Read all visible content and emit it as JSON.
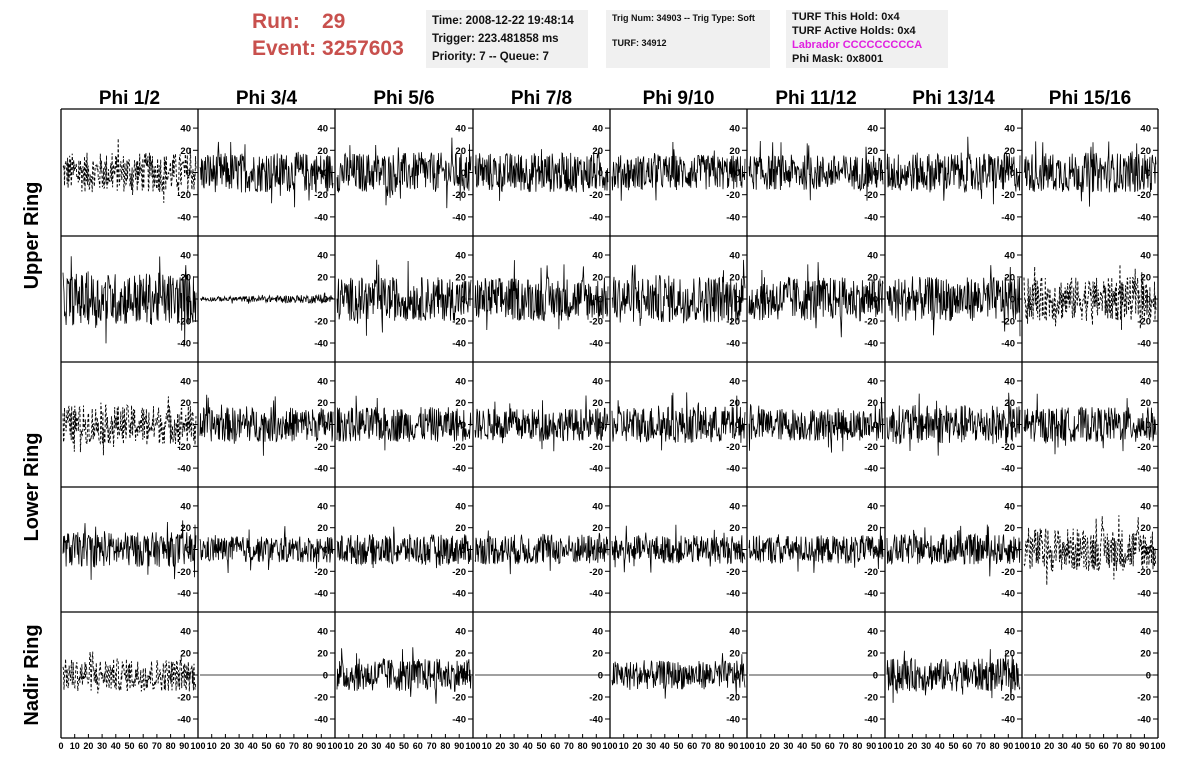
{
  "header": {
    "run_label": "Run:",
    "run_value": "29",
    "event_label": "Event:",
    "event_value": "3257603"
  },
  "info_time": {
    "time": "Time: 2008-12-22 19:48:14",
    "trigger": "Trigger: 223.481858 ms",
    "priority": "Priority: 7 -- Queue: 7"
  },
  "info_trig": {
    "trig": "Trig Num: 34903 -- Trig Type: Soft",
    "turf": "TURF: 34912"
  },
  "info_turf": {
    "hold": "TURF This Hold: 0x4",
    "active": "TURF Active Holds: 0x4",
    "labrador": "Labrador CCCCCCCCCA",
    "mask": "Phi Mask: 0x8001",
    "labrador_color": "#e020e0"
  },
  "chart_data": {
    "type": "line",
    "columns": [
      "Phi 1/2",
      "Phi 3/4",
      "Phi 5/6",
      "Phi 7/8",
      "Phi 9/10",
      "Phi 11/12",
      "Phi 13/14",
      "Phi 15/16"
    ],
    "row_labels": [
      "Upper Ring",
      "Lower Ring",
      "Nadir Ring"
    ],
    "y_ticks": [
      "40",
      "20",
      "0",
      "-20",
      "-40"
    ],
    "x_ticks": [
      "0",
      "10",
      "20",
      "30",
      "40",
      "50",
      "60",
      "70",
      "80",
      "90",
      "100"
    ],
    "xlim": [
      0,
      100
    ],
    "ylim": [
      -50,
      50
    ],
    "rows": [
      {
        "channels": [
          {
            "amp": 18,
            "style": "dashed"
          },
          {
            "amp": 18,
            "style": "solid"
          },
          {
            "amp": 18,
            "style": "solid"
          },
          {
            "amp": 18,
            "style": "solid"
          },
          {
            "amp": 16,
            "style": "solid"
          },
          {
            "amp": 16,
            "style": "solid"
          },
          {
            "amp": 18,
            "style": "solid"
          },
          {
            "amp": 18,
            "style": "solid"
          }
        ]
      },
      {
        "channels": [
          {
            "amp": 24,
            "style": "solid"
          },
          {
            "amp": 3,
            "style": "solid"
          },
          {
            "amp": 20,
            "style": "solid"
          },
          {
            "amp": 20,
            "style": "solid"
          },
          {
            "amp": 22,
            "style": "solid"
          },
          {
            "amp": 20,
            "style": "solid"
          },
          {
            "amp": 20,
            "style": "solid"
          },
          {
            "amp": 20,
            "style": "dashed"
          }
        ]
      },
      {
        "channels": [
          {
            "amp": 18,
            "style": "dashed"
          },
          {
            "amp": 16,
            "style": "solid"
          },
          {
            "amp": 16,
            "style": "solid"
          },
          {
            "amp": 15,
            "style": "solid"
          },
          {
            "amp": 17,
            "style": "solid"
          },
          {
            "amp": 15,
            "style": "solid"
          },
          {
            "amp": 18,
            "style": "solid"
          },
          {
            "amp": 16,
            "style": "solid"
          }
        ]
      },
      {
        "channels": [
          {
            "amp": 16,
            "style": "solid"
          },
          {
            "amp": 12,
            "style": "solid"
          },
          {
            "amp": 14,
            "style": "solid"
          },
          {
            "amp": 14,
            "style": "solid"
          },
          {
            "amp": 13,
            "style": "solid"
          },
          {
            "amp": 13,
            "style": "solid"
          },
          {
            "amp": 14,
            "style": "solid"
          },
          {
            "amp": 20,
            "style": "dashed"
          }
        ]
      },
      {
        "channels": [
          {
            "amp": 15,
            "style": "dashed"
          },
          {
            "amp": 0,
            "style": "flat"
          },
          {
            "amp": 15,
            "style": "solid"
          },
          {
            "amp": 0,
            "style": "flat"
          },
          {
            "amp": 13,
            "style": "solid"
          },
          {
            "amp": 0,
            "style": "flat"
          },
          {
            "amp": 15,
            "style": "solid"
          },
          {
            "amp": 0,
            "style": "flat"
          }
        ]
      }
    ]
  }
}
